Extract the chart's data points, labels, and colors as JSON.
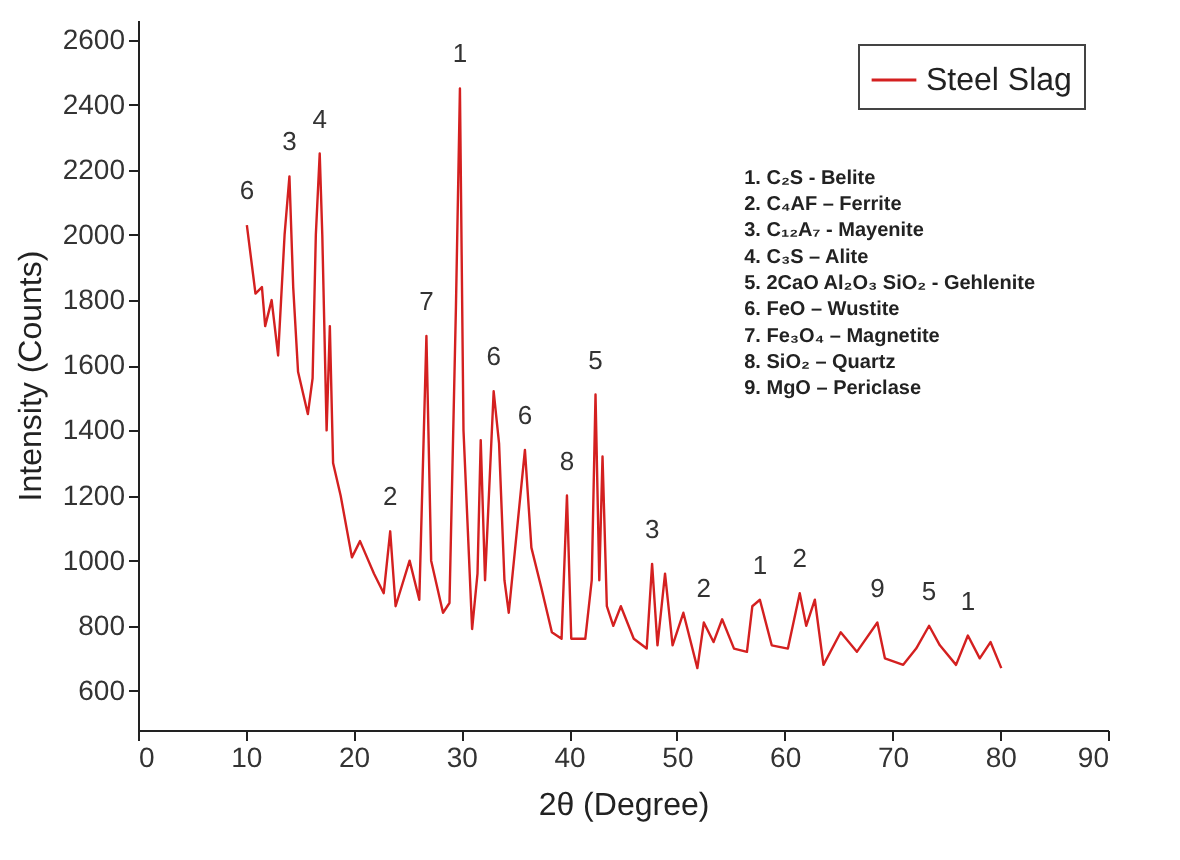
{
  "chart_data": {
    "type": "line",
    "xlabel": "2θ (Degree)",
    "ylabel": "Intensity (Counts)",
    "xlim": [
      0,
      90
    ],
    "xticks": [
      0,
      10,
      20,
      30,
      40,
      50,
      60,
      70,
      80,
      90
    ],
    "ylim": [
      480,
      2660
    ],
    "yticks": [
      600,
      800,
      1000,
      1200,
      1400,
      1600,
      1800,
      2000,
      2200,
      2400,
      2600
    ],
    "grid": false,
    "legend": "top right",
    "series": [
      {
        "name": "Steel Slag",
        "color": "#d42020",
        "x": [
          10.1,
          10.9,
          11.5,
          11.8,
          12.4,
          13.0,
          13.6,
          14.05,
          14.4,
          14.85,
          15.76,
          16.2,
          16.5,
          16.86,
          17.1,
          17.5,
          17.8,
          18.1,
          18.8,
          19.85,
          20.6,
          21.9,
          22.8,
          23.4,
          23.9,
          25.2,
          26.1,
          26.76,
          27.2,
          28.3,
          28.9,
          29.5,
          29.87,
          30.2,
          31.0,
          31.5,
          31.8,
          32.2,
          33.0,
          33.5,
          34.0,
          34.4,
          35.9,
          36.5,
          37.4,
          38.4,
          39.3,
          39.8,
          40.2,
          41.5,
          42.1,
          42.45,
          42.8,
          43.1,
          43.5,
          44.1,
          44.8,
          46.0,
          47.2,
          47.7,
          48.2,
          48.9,
          49.6,
          50.6,
          51.9,
          52.5,
          53.4,
          54.2,
          55.3,
          56.5,
          57.0,
          57.7,
          58.8,
          60.3,
          61.4,
          62.0,
          62.8,
          63.6,
          65.2,
          66.7,
          68.6,
          69.3,
          71.0,
          72.2,
          73.4,
          74.4,
          75.9,
          77.0,
          78.1,
          79.1,
          80.1
        ],
        "values": [
          2030,
          1820,
          1840,
          1720,
          1800,
          1630,
          2000,
          2180,
          1840,
          1580,
          1450,
          1560,
          2000,
          2250,
          2000,
          1400,
          1720,
          1300,
          1200,
          1010,
          1060,
          960,
          900,
          1090,
          860,
          1000,
          880,
          1690,
          1000,
          840,
          870,
          1780,
          2450,
          1400,
          790,
          960,
          1370,
          940,
          1520,
          1360,
          940,
          840,
          1340,
          1040,
          920,
          780,
          760,
          1200,
          760,
          760,
          940,
          1510,
          940,
          1320,
          860,
          800,
          860,
          760,
          730,
          990,
          740,
          960,
          740,
          840,
          670,
          810,
          750,
          820,
          730,
          720,
          860,
          880,
          740,
          730,
          900,
          800,
          880,
          680,
          780,
          720,
          810,
          700,
          680,
          730,
          800,
          740,
          680,
          770,
          700,
          750,
          670
        ]
      }
    ],
    "annotations": [
      {
        "text": "6",
        "x": 10.1,
        "y": 2030
      },
      {
        "text": "3",
        "x": 14.05,
        "y": 2180
      },
      {
        "text": "4",
        "x": 16.86,
        "y": 2250
      },
      {
        "text": "2",
        "x": 23.4,
        "y": 1090
      },
      {
        "text": "7",
        "x": 26.76,
        "y": 1690
      },
      {
        "text": "1",
        "x": 29.87,
        "y": 2450
      },
      {
        "text": "6",
        "x": 33.0,
        "y": 1520
      },
      {
        "text": "6",
        "x": 35.9,
        "y": 1340
      },
      {
        "text": "8",
        "x": 39.8,
        "y": 1200
      },
      {
        "text": "5",
        "x": 42.45,
        "y": 1510
      },
      {
        "text": "3",
        "x": 47.7,
        "y": 990
      },
      {
        "text": "2",
        "x": 52.5,
        "y": 810
      },
      {
        "text": "1",
        "x": 57.7,
        "y": 880
      },
      {
        "text": "2",
        "x": 61.4,
        "y": 900
      },
      {
        "text": "9",
        "x": 68.6,
        "y": 810
      },
      {
        "text": "5",
        "x": 73.4,
        "y": 800
      },
      {
        "text": "1",
        "x": 77.0,
        "y": 770
      },
      "1. C₂S - Belite",
      "2. C₄AF – Ferrite",
      "3. C₁₂A₇ - Mayenite",
      "4. C₃S – Alite",
      "5. 2CaO Al₂O₃ SiO₂ - Gehlenite",
      "6. FeO – Wustite",
      "7. Fe₃O₄ – Magnetite",
      "8. SiO₂ – Quartz",
      "9. MgO – Periclase"
    ]
  }
}
